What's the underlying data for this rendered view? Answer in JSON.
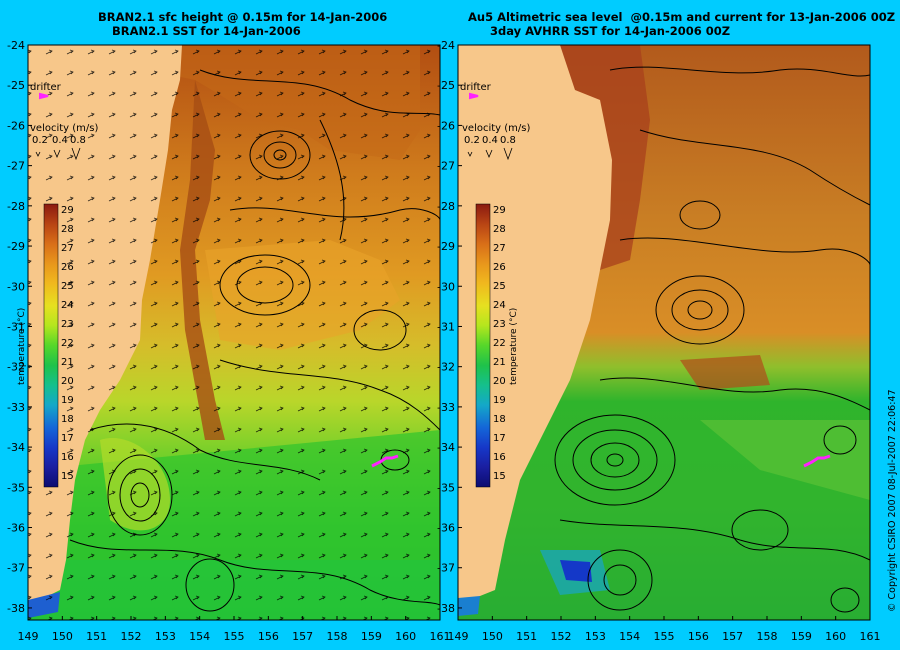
{
  "panels": [
    {
      "title_line1": "BRAN2.1 sfc height @ 0.15m for 14-Jan-2006",
      "title_line2": "BRAN2.1 SST for 14-Jan-2006"
    },
    {
      "title_line1": "Au5 Altimetric sea level  @0.15m and current for 13-Jan-2006 00Z",
      "title_line2": "3day AVHRR SST for 14-Jan-2006 00Z"
    }
  ],
  "legend": {
    "drifter_label": "drifter",
    "velocity_label": "velocity (m/s)",
    "velocity_values": [
      "0.2",
      "0.4",
      "0.8"
    ],
    "temperature_label": "temperature (°C)",
    "temperature_ticks": [
      29,
      28,
      27,
      26,
      25,
      24,
      23,
      22,
      21,
      20,
      19,
      18,
      17,
      16,
      15
    ]
  },
  "axes": {
    "lat_ticks": [
      -24,
      -25,
      -26,
      -27,
      -28,
      -29,
      -30,
      -31,
      -32,
      -33,
      -34,
      -35,
      -36,
      -37,
      -38
    ],
    "lon_ticks": [
      149,
      150,
      151,
      152,
      153,
      154,
      155,
      156,
      157,
      158,
      159,
      160,
      161
    ]
  },
  "colors": {
    "background": "#00ccff",
    "land": "#f7c78a",
    "drifter": "#ff22ff",
    "contour": "#000000"
  },
  "copyright": "© Copyright CSIRO 2007  08-Jul-2007 22:06:47"
}
